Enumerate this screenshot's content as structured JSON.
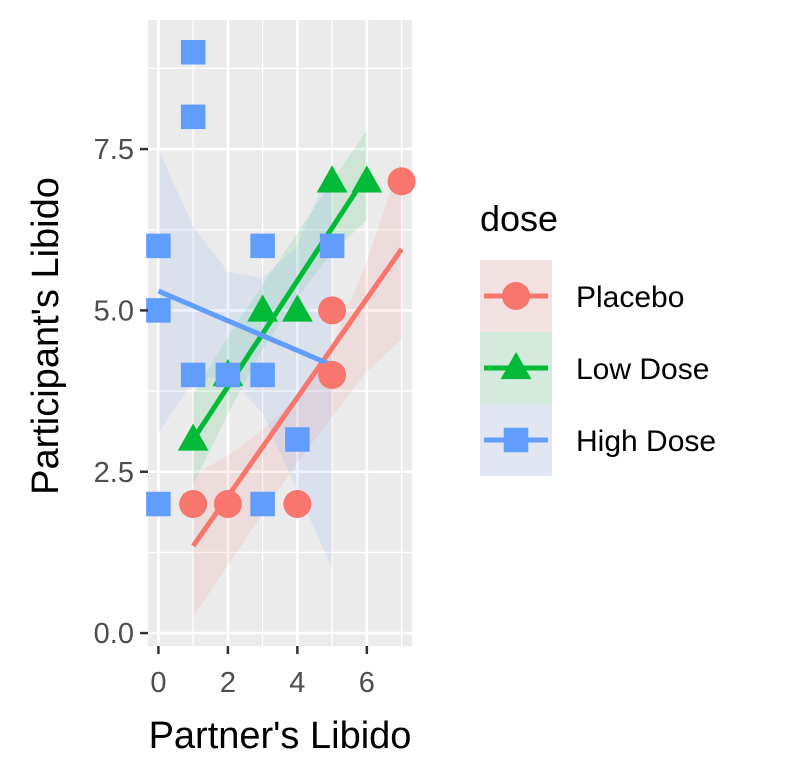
{
  "chart_data": {
    "type": "scatter",
    "title": "",
    "xlabel": "Partner's Libido",
    "ylabel": "Participant's Libido",
    "xlim": [
      -0.3,
      7.3
    ],
    "ylim": [
      -0.2,
      9.5
    ],
    "x_ticks": [
      0,
      2,
      4,
      6
    ],
    "x_tick_labels": [
      "0",
      "2",
      "4",
      "6"
    ],
    "y_ticks": [
      0,
      2.5,
      5,
      7.5
    ],
    "y_tick_labels": [
      "0.0",
      "2.5",
      "5.0",
      "7.5"
    ],
    "grid": true,
    "legend": {
      "title": "dose",
      "position": "right"
    },
    "series": [
      {
        "name": "Placebo",
        "color": "#F8766D",
        "marker": "circle",
        "points": [
          [
            1,
            2
          ],
          [
            2,
            2
          ],
          [
            4,
            2
          ],
          [
            5,
            4
          ],
          [
            5,
            5
          ],
          [
            7,
            7
          ]
        ],
        "fit_line": {
          "x": [
            1,
            7
          ],
          "y": [
            1.35,
            5.95
          ]
        },
        "band": {
          "x": [
            1,
            2,
            3,
            4,
            5,
            6,
            7
          ],
          "lower": [
            0.25,
            1.05,
            1.85,
            2.65,
            3.35,
            4.05,
            4.55
          ],
          "upper": [
            2.45,
            2.75,
            3.15,
            3.65,
            4.45,
            5.75,
            7.35
          ]
        }
      },
      {
        "name": "Low Dose",
        "color": "#00BA38",
        "marker": "triangle",
        "points": [
          [
            1,
            3
          ],
          [
            2,
            4
          ],
          [
            3,
            5
          ],
          [
            4,
            5
          ],
          [
            5,
            7
          ],
          [
            6,
            7
          ]
        ],
        "fit_line": {
          "x": [
            1,
            6
          ],
          "y": [
            3.0,
            7.1
          ]
        },
        "band": {
          "x": [
            1,
            2,
            3,
            4,
            5,
            6
          ],
          "lower": [
            2.3,
            3.4,
            4.4,
            5.2,
            5.9,
            6.4
          ],
          "upper": [
            3.7,
            4.6,
            5.4,
            6.2,
            7.0,
            7.8
          ]
        }
      },
      {
        "name": "High Dose",
        "color": "#619CFF",
        "marker": "square",
        "points": [
          [
            0,
            2
          ],
          [
            0,
            5
          ],
          [
            0,
            6
          ],
          [
            1,
            4
          ],
          [
            1,
            8
          ],
          [
            1,
            9
          ],
          [
            2,
            4
          ],
          [
            3,
            2
          ],
          [
            3,
            4
          ],
          [
            3,
            6
          ],
          [
            4,
            3
          ],
          [
            5,
            6
          ]
        ],
        "fit_line": {
          "x": [
            0,
            5
          ],
          "y": [
            5.3,
            4.15
          ]
        },
        "band": {
          "x": [
            0,
            1,
            2,
            3,
            4,
            5
          ],
          "lower": [
            3.1,
            3.9,
            4.0,
            3.4,
            2.2,
            1.0
          ],
          "upper": [
            7.5,
            6.3,
            5.6,
            5.5,
            6.0,
            7.3
          ]
        }
      }
    ]
  }
}
